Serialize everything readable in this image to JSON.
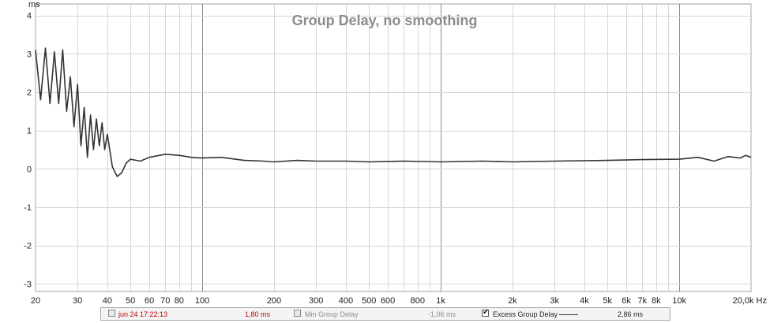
{
  "chart_data": {
    "type": "line",
    "title": "Group Delay, no smoothing",
    "ylabel": "ms",
    "xlabel": "Hz",
    "x_scale": "log",
    "xlim": [
      20,
      20000
    ],
    "ylim": [
      -3.2,
      4.3
    ],
    "x_tick_labels": [
      {
        "v": 20,
        "t": "20"
      },
      {
        "v": 30,
        "t": "30"
      },
      {
        "v": 40,
        "t": "40"
      },
      {
        "v": 50,
        "t": "50"
      },
      {
        "v": 60,
        "t": "60"
      },
      {
        "v": 70,
        "t": "70"
      },
      {
        "v": 80,
        "t": "80"
      },
      {
        "v": 100,
        "t": "100"
      },
      {
        "v": 200,
        "t": "200"
      },
      {
        "v": 300,
        "t": "300"
      },
      {
        "v": 400,
        "t": "400"
      },
      {
        "v": 500,
        "t": "500"
      },
      {
        "v": 600,
        "t": "600"
      },
      {
        "v": 800,
        "t": "800"
      },
      {
        "v": 1000,
        "t": "1k"
      },
      {
        "v": 2000,
        "t": "2k"
      },
      {
        "v": 3000,
        "t": "3k"
      },
      {
        "v": 4000,
        "t": "4k"
      },
      {
        "v": 5000,
        "t": "5k"
      },
      {
        "v": 6000,
        "t": "6k"
      },
      {
        "v": 7000,
        "t": "7k"
      },
      {
        "v": 8000,
        "t": "8k"
      },
      {
        "v": 10000,
        "t": "10k"
      },
      {
        "v": 20000,
        "t": "20,0k Hz"
      }
    ],
    "y_tick_labels": [
      {
        "v": 4,
        "t": "4"
      },
      {
        "v": 3,
        "t": "3"
      },
      {
        "v": 2,
        "t": "2"
      },
      {
        "v": 1,
        "t": "1"
      },
      {
        "v": 0,
        "t": "0"
      },
      {
        "v": -1,
        "t": "-1"
      },
      {
        "v": -2,
        "t": "-2"
      },
      {
        "v": -3,
        "t": "-3"
      }
    ],
    "grid": true,
    "series": [
      {
        "name": "Excess Group Delay",
        "color": "#333333",
        "x": [
          20,
          21,
          22,
          23,
          24,
          25,
          26,
          27,
          28,
          29,
          30,
          31,
          32,
          33,
          34,
          35,
          36,
          37,
          38,
          39,
          40,
          42,
          44,
          46,
          48,
          50,
          55,
          60,
          70,
          80,
          90,
          100,
          120,
          150,
          180,
          200,
          250,
          300,
          400,
          500,
          700,
          1000,
          1500,
          2000,
          3000,
          5000,
          7000,
          10000,
          12000,
          14000,
          16000,
          18000,
          19000,
          20000
        ],
        "values": [
          3.1,
          1.8,
          3.15,
          1.7,
          3.05,
          1.7,
          3.1,
          1.5,
          2.4,
          1.1,
          2.2,
          0.6,
          1.6,
          0.3,
          1.4,
          0.5,
          1.3,
          0.6,
          1.2,
          0.5,
          0.9,
          0.05,
          -0.2,
          -0.1,
          0.15,
          0.25,
          0.2,
          0.3,
          0.38,
          0.35,
          0.3,
          0.28,
          0.3,
          0.22,
          0.2,
          0.18,
          0.22,
          0.2,
          0.2,
          0.18,
          0.2,
          0.18,
          0.2,
          0.18,
          0.2,
          0.22,
          0.24,
          0.25,
          0.3,
          0.2,
          0.32,
          0.28,
          0.35,
          0.3
        ]
      }
    ]
  },
  "legend": {
    "item1_label": "jun 24 17:22:13",
    "item1_value": "1,80 ms",
    "item2_label": "Min Group Delay",
    "item2_value": "-1,06 ms",
    "item3_label": "Excess Group Delay",
    "item3_value": "2,86 ms",
    "value_color": "#c00000",
    "dim_color": "#8a8a8a",
    "text_color": "#222222"
  }
}
